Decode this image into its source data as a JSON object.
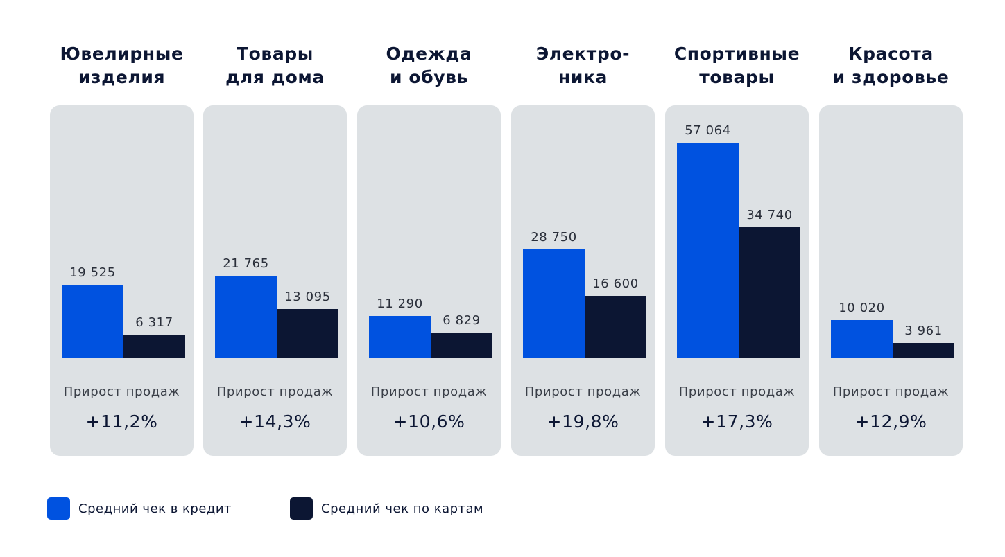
{
  "chart_data": {
    "type": "bar",
    "categories": [
      "Ювелирные\nизделия",
      "Товары\nдля дома",
      "Одежда\nи обувь",
      "Электро-\nника",
      "Спортивные\nтовары",
      "Красота\nи здоровье"
    ],
    "series": [
      {
        "name": "Средний чек в кредит",
        "color": "#0052e0",
        "values": [
          19525,
          21765,
          11290,
          28750,
          57064,
          10020
        ],
        "labels": [
          "19 525",
          "21 765",
          "11 290",
          "28 750",
          "57 064",
          "10 020"
        ]
      },
      {
        "name": "Средний чек по картам",
        "color": "#0c1633",
        "values": [
          6317,
          13095,
          6829,
          16600,
          34740,
          3961
        ],
        "labels": [
          "6 317",
          "13 095",
          "6 829",
          "16 600",
          "34 740",
          "3 961"
        ]
      }
    ],
    "growth_label": "Прирост продаж",
    "growth_values": [
      "+11,2%",
      "+14,3%",
      "+10,6%",
      "+19,8%",
      "+17,3%",
      "+12,9%"
    ],
    "legend_placement": "bottom-left",
    "grid": false
  }
}
